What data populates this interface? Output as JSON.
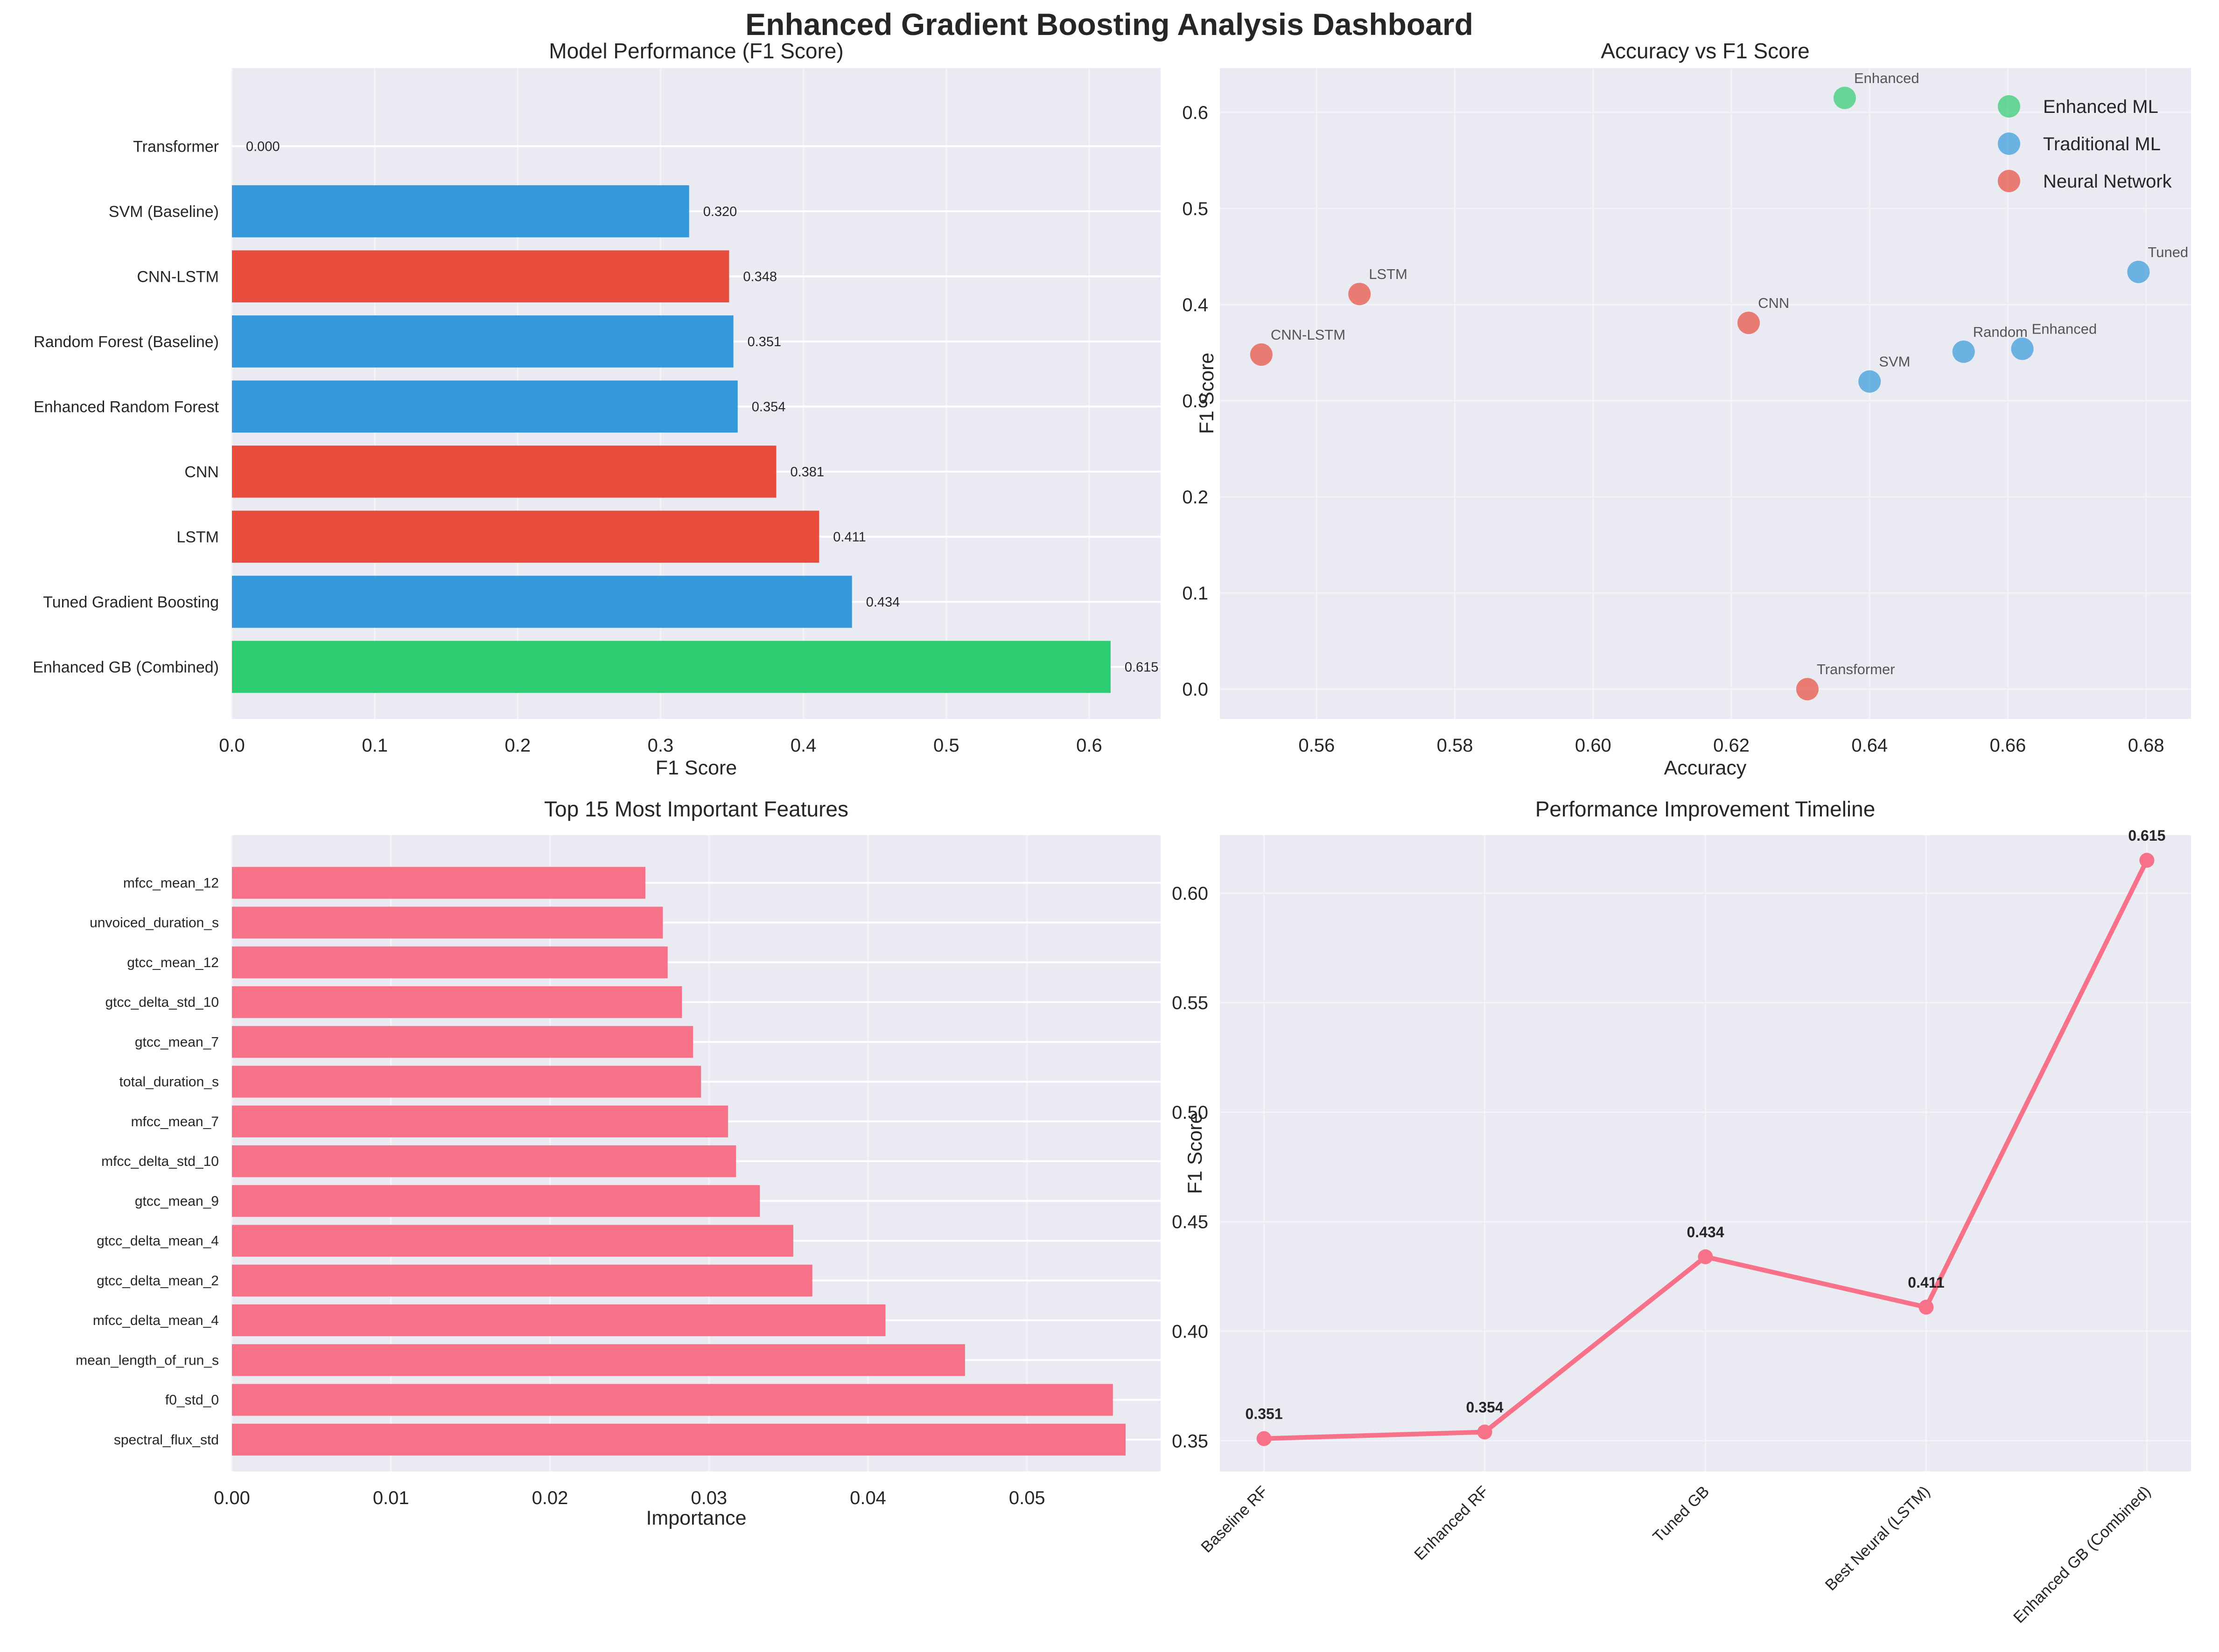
{
  "figure": {
    "title": "Enhanced Gradient Boosting Analysis Dashboard",
    "background": "#ffffff",
    "axes_background": "#eaeaf2"
  },
  "legend": {
    "items": [
      {
        "label": "Enhanced ML",
        "color": "#2ecc71"
      },
      {
        "label": "Traditional ML",
        "color": "#3498db"
      },
      {
        "label": "Neural Network",
        "color": "#e74c3c"
      }
    ]
  },
  "chart_data": [
    {
      "id": "model_performance",
      "type": "bar",
      "orientation": "horizontal",
      "title": "Model Performance (F1 Score)",
      "xlabel": "F1 Score",
      "ylabel": "",
      "xlim": [
        0,
        0.65
      ],
      "xticks": [
        "0.0",
        "0.1",
        "0.2",
        "0.3",
        "0.4",
        "0.5",
        "0.6"
      ],
      "xtick_values": [
        0,
        0.1,
        0.2,
        0.3,
        0.4,
        0.5,
        0.6
      ],
      "grid": true,
      "categories": [
        "Enhanced GB (Combined)",
        "Tuned Gradient Boosting",
        "LSTM",
        "CNN",
        "Enhanced Random Forest",
        "Random Forest (Baseline)",
        "CNN-LSTM",
        "SVM (Baseline)",
        "Transformer"
      ],
      "values": [
        0.615,
        0.434,
        0.411,
        0.381,
        0.354,
        0.351,
        0.348,
        0.32,
        0.0
      ],
      "value_labels": [
        "0.615",
        "0.434",
        "0.411",
        "0.381",
        "0.354",
        "0.351",
        "0.348",
        "0.320",
        "0.000"
      ],
      "colors": [
        "#2ecc71",
        "#3498db",
        "#e74c3c",
        "#e74c3c",
        "#3498db",
        "#3498db",
        "#e74c3c",
        "#3498db",
        "#e74c3c"
      ]
    },
    {
      "id": "accuracy_vs_f1",
      "type": "scatter",
      "title": "Accuracy vs F1 Score",
      "xlabel": "Accuracy",
      "ylabel": "F1 Score",
      "xlim": [
        0.546,
        0.6865
      ],
      "ylim": [
        -0.031,
        0.646
      ],
      "xticks": [
        "0.56",
        "0.58",
        "0.60",
        "0.62",
        "0.64",
        "0.66",
        "0.68"
      ],
      "xtick_values": [
        0.56,
        0.58,
        0.6,
        0.62,
        0.64,
        0.66,
        0.68
      ],
      "yticks": [
        "0.0",
        "0.1",
        "0.2",
        "0.3",
        "0.4",
        "0.5",
        "0.6"
      ],
      "ytick_values": [
        0,
        0.1,
        0.2,
        0.3,
        0.4,
        0.5,
        0.6
      ],
      "grid": true,
      "legend_position": "top-right",
      "series": [
        {
          "name": "Enhanced ML",
          "color": "#2ecc71",
          "points": [
            {
              "label": "Enhanced",
              "x": 0.6364,
              "y": 0.615
            }
          ]
        },
        {
          "name": "Traditional ML",
          "color": "#3498db",
          "points": [
            {
              "label": "Tuned",
              "x": 0.6789,
              "y": 0.434
            },
            {
              "label": "Random",
              "x": 0.6536,
              "y": 0.351
            },
            {
              "label": "Enhanced",
              "x": 0.6621,
              "y": 0.354
            },
            {
              "label": "SVM",
              "x": 0.64,
              "y": 0.32
            }
          ]
        },
        {
          "name": "Neural Network",
          "color": "#e74c3c",
          "points": [
            {
              "label": "LSTM",
              "x": 0.5662,
              "y": 0.411
            },
            {
              "label": "CNN",
              "x": 0.6225,
              "y": 0.381
            },
            {
              "label": "CNN-LSTM",
              "x": 0.552,
              "y": 0.348
            },
            {
              "label": "Transformer",
              "x": 0.631,
              "y": 0.0
            }
          ]
        }
      ]
    },
    {
      "id": "feature_importance",
      "type": "bar",
      "orientation": "horizontal",
      "title": "Top 15 Most Important Features",
      "xlabel": "Importance",
      "ylabel": "",
      "xlim": [
        0,
        0.0584
      ],
      "xticks": [
        "0.00",
        "0.01",
        "0.02",
        "0.03",
        "0.04",
        "0.05"
      ],
      "xtick_values": [
        0,
        0.01,
        0.02,
        0.03,
        0.04,
        0.05
      ],
      "grid": true,
      "color": "#f77189",
      "categories": [
        "spectral_flux_std",
        "f0_std_0",
        "mean_length_of_run_s",
        "mfcc_delta_mean_4",
        "gtcc_delta_mean_2",
        "gtcc_delta_mean_4",
        "gtcc_mean_9",
        "mfcc_delta_std_10",
        "mfcc_mean_7",
        "total_duration_s",
        "gtcc_mean_7",
        "gtcc_delta_std_10",
        "gtcc_mean_12",
        "unvoiced_duration_s",
        "mfcc_mean_12"
      ],
      "values": [
        0.0562,
        0.0554,
        0.0461,
        0.0411,
        0.0365,
        0.0353,
        0.0332,
        0.0317,
        0.0312,
        0.0295,
        0.029,
        0.0283,
        0.0274,
        0.0271,
        0.026
      ]
    },
    {
      "id": "improvement_timeline",
      "type": "line",
      "title": "Performance Improvement Timeline",
      "xlabel": "",
      "ylabel": "F1 Score",
      "ylim": [
        0.336,
        0.6265
      ],
      "yticks": [
        "0.35",
        "0.40",
        "0.45",
        "0.50",
        "0.55",
        "0.60"
      ],
      "ytick_values": [
        0.35,
        0.4,
        0.45,
        0.5,
        0.55,
        0.6
      ],
      "grid": true,
      "color": "#f77189",
      "categories": [
        "Baseline RF",
        "Enhanced RF",
        "Tuned GB",
        "Best Neural (LSTM)",
        "Enhanced GB (Combined)"
      ],
      "values": [
        0.351,
        0.354,
        0.434,
        0.411,
        0.615
      ],
      "value_labels": [
        "0.351",
        "0.354",
        "0.434",
        "0.411",
        "0.615"
      ]
    }
  ]
}
